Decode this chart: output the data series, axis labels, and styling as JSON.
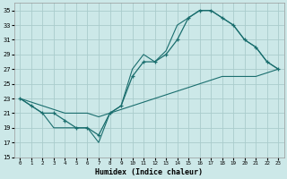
{
  "xlabel": "Humidex (Indice chaleur)",
  "bg_color": "#cce8e8",
  "grid_color": "#aacccc",
  "line_color": "#1a6e6e",
  "xlim": [
    -0.5,
    23.5
  ],
  "ylim": [
    15,
    36
  ],
  "xticks": [
    0,
    1,
    2,
    3,
    4,
    5,
    6,
    7,
    8,
    9,
    10,
    11,
    12,
    13,
    14,
    15,
    16,
    17,
    18,
    19,
    20,
    21,
    22,
    23
  ],
  "yticks": [
    15,
    17,
    19,
    21,
    23,
    25,
    27,
    29,
    31,
    33,
    35
  ],
  "line1_x": [
    0,
    1,
    2,
    3,
    4,
    5,
    6,
    7,
    8,
    9,
    10,
    11,
    12,
    13,
    14,
    15,
    16,
    17,
    18,
    19,
    20,
    21,
    22,
    23
  ],
  "line1_y": [
    23,
    22,
    21,
    21,
    20,
    19,
    19,
    18,
    21,
    22,
    26,
    28,
    28,
    29,
    31,
    34,
    35,
    35,
    34,
    33,
    31,
    30,
    28,
    27
  ],
  "line2_x": [
    0,
    1,
    2,
    3,
    4,
    5,
    6,
    7,
    8,
    9,
    10,
    11,
    12,
    13,
    14,
    15,
    16,
    17,
    18,
    19,
    20,
    21,
    22,
    23
  ],
  "line2_y": [
    23,
    22,
    21,
    19,
    19,
    19,
    19,
    17,
    21,
    22,
    27,
    29,
    28,
    29.5,
    33,
    34,
    35,
    35,
    34,
    33,
    31,
    30,
    28,
    27
  ],
  "line3_x": [
    0,
    1,
    2,
    3,
    4,
    5,
    6,
    7,
    8,
    9,
    10,
    11,
    12,
    13,
    14,
    15,
    16,
    17,
    18,
    19,
    20,
    21,
    22,
    23
  ],
  "line3_y": [
    23,
    22.5,
    22,
    21.5,
    21,
    21,
    21,
    20.5,
    21,
    21.5,
    22,
    22.5,
    23,
    23.5,
    24,
    24.5,
    25,
    25.5,
    26,
    26,
    26,
    26,
    26.5,
    27
  ]
}
